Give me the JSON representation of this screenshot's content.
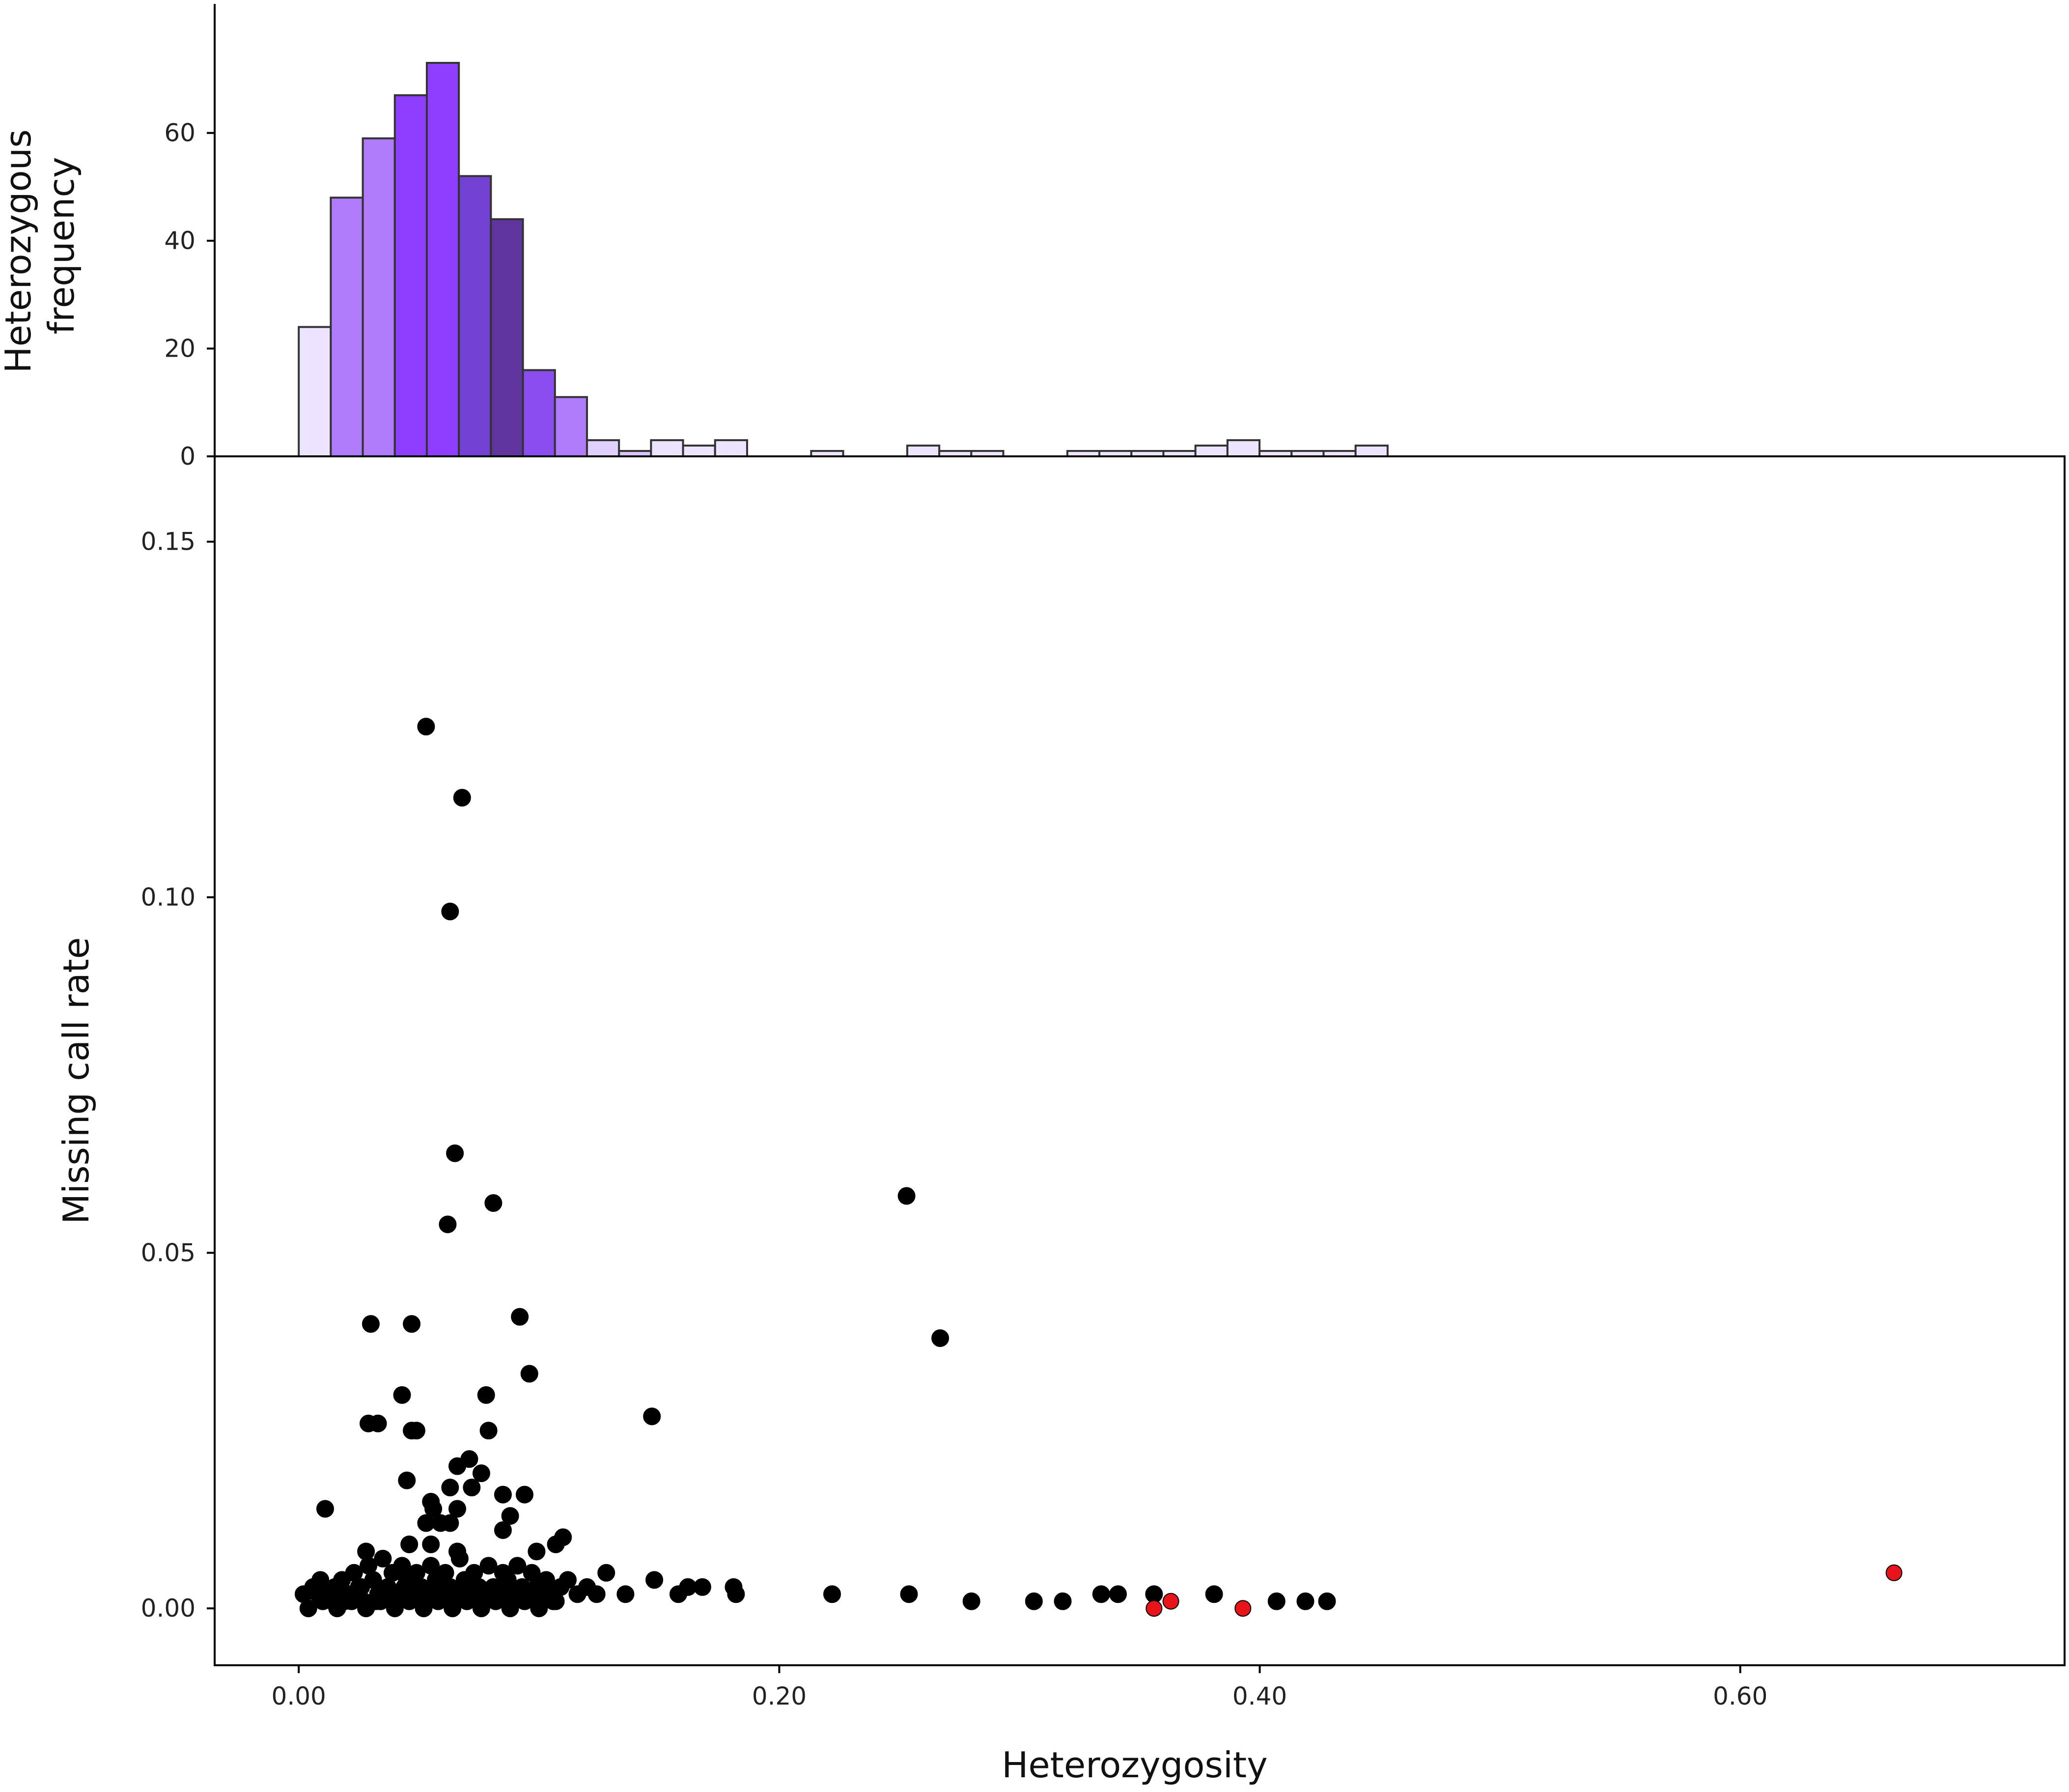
{
  "chart_data": [
    {
      "type": "bar",
      "ylabel": [
        "Heterozygous",
        "frequency"
      ],
      "ylim": [
        0,
        73
      ],
      "yticks": [
        0,
        20,
        40,
        60
      ],
      "bin_start": 0.0,
      "bin_width": 0.01333,
      "counts": [
        24,
        48,
        59,
        67,
        73,
        52,
        44,
        16,
        11,
        3,
        1,
        3,
        2,
        3,
        0,
        0,
        1,
        0,
        0,
        2,
        1,
        1,
        0,
        0,
        1,
        1,
        1,
        1,
        2,
        3,
        1,
        1,
        1,
        2
      ],
      "bar_colors": [
        "#ede4ff",
        "#b07cfb",
        "#b07cfb",
        "#8f3dff",
        "#8f3dff",
        "#7341d3",
        "#60359f",
        "#8a4ef0",
        "#b07cfb",
        "#e0d0fd",
        "#d7c3fb",
        "#ede4ff",
        "#ede4ff",
        "#ede4ff",
        "#ede4ff",
        "#ede4ff",
        "#ede4ff",
        "#ede4ff",
        "#ede4ff",
        "#ede4ff",
        "#ede4ff",
        "#ede4ff",
        "#ede4ff",
        "#ede4ff",
        "#ede4ff",
        "#ede4ff",
        "#ede4ff",
        "#ede4ff",
        "#ede4ff",
        "#ede4ff",
        "#ede4ff",
        "#ede4ff",
        "#ede4ff",
        "#ede4ff"
      ]
    },
    {
      "type": "scatter",
      "xlabel": "Heterozygosity",
      "ylabel": "Missing call rate",
      "xlim": [
        -0.035,
        0.735
      ],
      "ylim": [
        -0.008,
        0.162
      ],
      "xticks": [
        "0.00",
        "0.20",
        "0.40",
        "0.60"
      ],
      "yticks": [
        "0.00",
        "0.05",
        "0.10",
        "0.15"
      ],
      "point_color": "#000000",
      "highlight_color": "#e8141b",
      "points": [
        [
          0.053,
          0.124
        ],
        [
          0.068,
          0.114
        ],
        [
          0.063,
          0.098
        ],
        [
          0.065,
          0.064
        ],
        [
          0.081,
          0.057
        ],
        [
          0.062,
          0.054
        ],
        [
          0.253,
          0.058
        ],
        [
          0.267,
          0.038
        ],
        [
          0.092,
          0.041
        ],
        [
          0.03,
          0.04
        ],
        [
          0.047,
          0.04
        ],
        [
          0.096,
          0.033
        ],
        [
          0.043,
          0.03
        ],
        [
          0.078,
          0.03
        ],
        [
          0.147,
          0.027
        ],
        [
          0.029,
          0.026
        ],
        [
          0.033,
          0.026
        ],
        [
          0.049,
          0.025
        ],
        [
          0.047,
          0.025
        ],
        [
          0.079,
          0.025
        ],
        [
          0.071,
          0.021
        ],
        [
          0.066,
          0.02
        ],
        [
          0.076,
          0.019
        ],
        [
          0.045,
          0.018
        ],
        [
          0.072,
          0.017
        ],
        [
          0.063,
          0.017
        ],
        [
          0.094,
          0.016
        ],
        [
          0.085,
          0.016
        ],
        [
          0.055,
          0.015
        ],
        [
          0.066,
          0.014
        ],
        [
          0.011,
          0.014
        ],
        [
          0.056,
          0.014
        ],
        [
          0.088,
          0.013
        ],
        [
          0.059,
          0.012
        ],
        [
          0.063,
          0.012
        ],
        [
          0.053,
          0.012
        ],
        [
          0.085,
          0.011
        ],
        [
          0.028,
          0.008
        ],
        [
          0.046,
          0.009
        ],
        [
          0.055,
          0.009
        ],
        [
          0.066,
          0.008
        ],
        [
          0.11,
          0.01
        ],
        [
          0.107,
          0.009
        ],
        [
          0.099,
          0.008
        ],
        [
          0.002,
          0.002
        ],
        [
          0.006,
          0.003
        ],
        [
          0.009,
          0.004
        ],
        [
          0.012,
          0.002
        ],
        [
          0.015,
          0.003
        ],
        [
          0.018,
          0.004
        ],
        [
          0.021,
          0.002
        ],
        [
          0.023,
          0.005
        ],
        [
          0.025,
          0.003
        ],
        [
          0.027,
          0.001
        ],
        [
          0.029,
          0.006
        ],
        [
          0.031,
          0.004
        ],
        [
          0.033,
          0.002
        ],
        [
          0.035,
          0.007
        ],
        [
          0.037,
          0.003
        ],
        [
          0.039,
          0.005
        ],
        [
          0.041,
          0.001
        ],
        [
          0.043,
          0.006
        ],
        [
          0.045,
          0.004
        ],
        [
          0.047,
          0.002
        ],
        [
          0.049,
          0.005
        ],
        [
          0.051,
          0.003
        ],
        [
          0.053,
          0.001
        ],
        [
          0.055,
          0.006
        ],
        [
          0.057,
          0.004
        ],
        [
          0.059,
          0.002
        ],
        [
          0.061,
          0.005
        ],
        [
          0.063,
          0.003
        ],
        [
          0.065,
          0.001
        ],
        [
          0.067,
          0.007
        ],
        [
          0.069,
          0.004
        ],
        [
          0.071,
          0.002
        ],
        [
          0.073,
          0.005
        ],
        [
          0.075,
          0.003
        ],
        [
          0.077,
          0.001
        ],
        [
          0.079,
          0.006
        ],
        [
          0.081,
          0.003
        ],
        [
          0.083,
          0.002
        ],
        [
          0.085,
          0.005
        ],
        [
          0.087,
          0.004
        ],
        [
          0.089,
          0.001
        ],
        [
          0.091,
          0.006
        ],
        [
          0.093,
          0.003
        ],
        [
          0.095,
          0.002
        ],
        [
          0.097,
          0.005
        ],
        [
          0.099,
          0.003
        ],
        [
          0.101,
          0.001
        ],
        [
          0.103,
          0.004
        ],
        [
          0.105,
          0.002
        ],
        [
          0.107,
          0.001
        ],
        [
          0.109,
          0.003
        ],
        [
          0.112,
          0.004
        ],
        [
          0.116,
          0.002
        ],
        [
          0.12,
          0.003
        ],
        [
          0.124,
          0.002
        ],
        [
          0.128,
          0.005
        ],
        [
          0.004,
          0.0
        ],
        [
          0.01,
          0.001
        ],
        [
          0.016,
          0.0
        ],
        [
          0.022,
          0.001
        ],
        [
          0.028,
          0.0
        ],
        [
          0.034,
          0.001
        ],
        [
          0.04,
          0.0
        ],
        [
          0.046,
          0.001
        ],
        [
          0.052,
          0.0
        ],
        [
          0.058,
          0.001
        ],
        [
          0.064,
          0.0
        ],
        [
          0.07,
          0.001
        ],
        [
          0.076,
          0.0
        ],
        [
          0.082,
          0.001
        ],
        [
          0.088,
          0.0
        ],
        [
          0.094,
          0.001
        ],
        [
          0.1,
          0.0
        ],
        [
          0.106,
          0.001
        ],
        [
          0.008,
          0.002
        ],
        [
          0.019,
          0.001
        ],
        [
          0.026,
          0.003
        ],
        [
          0.038,
          0.002
        ],
        [
          0.044,
          0.003
        ],
        [
          0.056,
          0.002
        ],
        [
          0.068,
          0.003
        ],
        [
          0.074,
          0.002
        ],
        [
          0.086,
          0.003
        ],
        [
          0.092,
          0.002
        ],
        [
          0.014,
          0.001
        ],
        [
          0.032,
          0.001
        ],
        [
          0.05,
          0.002
        ],
        [
          0.062,
          0.002
        ],
        [
          0.08,
          0.002
        ],
        [
          0.098,
          0.002
        ],
        [
          0.136,
          0.002
        ],
        [
          0.148,
          0.004
        ],
        [
          0.158,
          0.002
        ],
        [
          0.162,
          0.003
        ],
        [
          0.168,
          0.003
        ],
        [
          0.181,
          0.003
        ],
        [
          0.182,
          0.002
        ],
        [
          0.222,
          0.002
        ],
        [
          0.254,
          0.002
        ],
        [
          0.28,
          0.001
        ],
        [
          0.306,
          0.001
        ],
        [
          0.318,
          0.001
        ],
        [
          0.334,
          0.002
        ],
        [
          0.341,
          0.002
        ],
        [
          0.356,
          0.002
        ],
        [
          0.381,
          0.002
        ],
        [
          0.407,
          0.001
        ],
        [
          0.419,
          0.001
        ],
        [
          0.428,
          0.001
        ]
      ],
      "highlighted_points": [
        [
          0.356,
          0.0
        ],
        [
          0.363,
          0.001
        ],
        [
          0.393,
          0.0
        ],
        [
          0.664,
          0.005
        ]
      ]
    }
  ]
}
